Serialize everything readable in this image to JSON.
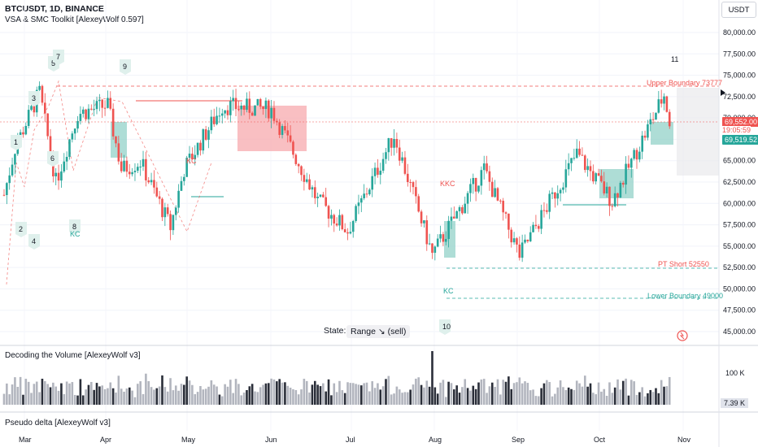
{
  "header": {
    "symbol_line": "BTCUSDT, 1D, BINANCE",
    "indicator_line": "VSA & SMC Toolkit [AlexeyWolf 0.597]",
    "currency": "USDT"
  },
  "colors": {
    "bull": "#26a69a",
    "bear": "#ef5350",
    "grid": "#f0f3fa",
    "zone_red": "#f7a9ad",
    "zone_green": "#8ccfc4",
    "volume_dark": "#2a2e39",
    "volume_gray": "#b2b5be"
  },
  "price_labels": {
    "current": "69,552.00",
    "countdown": "19:05:59",
    "secondary": "69,519.52"
  },
  "annotations": {
    "upper_boundary": "Upper Boundary 73777",
    "pt_short": "PT Short 52550",
    "lower_boundary": "Lower Boundary 49000",
    "kc": "KC",
    "kkc": "KKC",
    "state_label": "State:",
    "state_value": "Range ↘ (sell)",
    "wave_labels": [
      "1",
      "2",
      "3",
      "4",
      "5",
      "6",
      "7",
      "8",
      "9",
      "10",
      "11"
    ]
  },
  "panes": {
    "volume_title": "Decoding the Volume [AlexeyWolf v3]",
    "volume_tick": "100 K",
    "volume_last": "7.39 K",
    "delta_title": "Pseudo delta [AlexeyWolf v3]"
  },
  "chart_data": {
    "type": "candlestick",
    "title": "BTCUSDT, 1D, BINANCE",
    "y_ticks": [
      "80,000.00",
      "77,500.00",
      "75,000.00",
      "72,500.00",
      "70,000.00",
      "67,500.00",
      "65,000.00",
      "62,500.00",
      "60,000.00",
      "57,500.00",
      "55,000.00",
      "52,500.00",
      "50,000.00",
      "47,500.00",
      "45,000.00"
    ],
    "ylim": [
      45000,
      80000
    ],
    "x_ticks": [
      "Mar",
      "Apr",
      "May",
      "Jun",
      "Jul",
      "Aug",
      "Sep",
      "Oct",
      "Nov"
    ],
    "approx_close_path": [
      {
        "date": "Mar 1",
        "close": 61000
      },
      {
        "date": "Mar 5",
        "close": 66500
      },
      {
        "date": "Mar 14",
        "close": 73000
      },
      {
        "date": "Mar 20",
        "close": 62500
      },
      {
        "date": "Mar 28",
        "close": 70500
      },
      {
        "date": "Apr 8",
        "close": 71500
      },
      {
        "date": "Apr 13",
        "close": 64000
      },
      {
        "date": "Apr 20",
        "close": 64900
      },
      {
        "date": "May 1",
        "close": 57200
      },
      {
        "date": "May 6",
        "close": 64000
      },
      {
        "date": "May 20",
        "close": 71400
      },
      {
        "date": "Jun 7",
        "close": 71000
      },
      {
        "date": "Jun 24",
        "close": 60300
      },
      {
        "date": "Jul 5",
        "close": 56800
      },
      {
        "date": "Jul 22",
        "close": 68000
      },
      {
        "date": "Aug 5",
        "close": 54000
      },
      {
        "date": "Aug 24",
        "close": 64000
      },
      {
        "date": "Sep 6",
        "close": 53900
      },
      {
        "date": "Sep 27",
        "close": 65800
      },
      {
        "date": "Oct 10",
        "close": 60300
      },
      {
        "date": "Oct 29",
        "close": 72700
      },
      {
        "date": "Oct 31",
        "close": 69552
      }
    ],
    "volume_last": "7.39 K",
    "levels": [
      {
        "name": "Upper Boundary",
        "value": 73777
      },
      {
        "name": "PT Short",
        "value": 52550
      },
      {
        "name": "Lower Boundary",
        "value": 49000
      }
    ]
  }
}
